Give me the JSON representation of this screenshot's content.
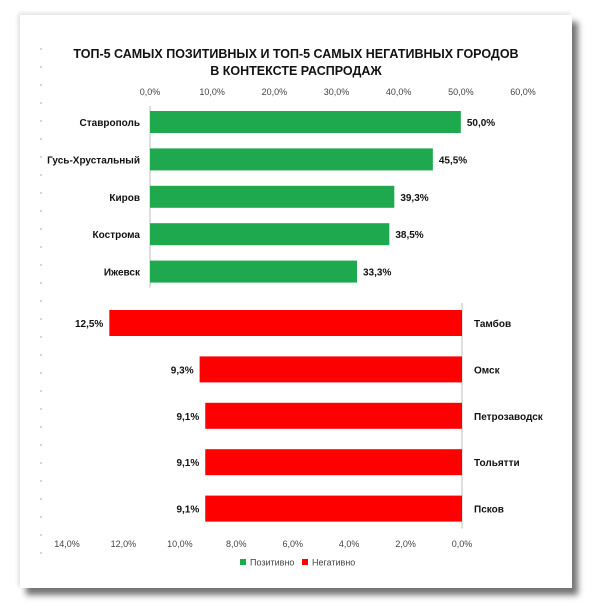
{
  "title": {
    "line1": "ТОП-5 САМЫХ ПОЗИТИВНЫХ И ТОП-5 САМЫХ НЕГАТИВНЫХ ГОРОДОВ",
    "line2": "В КОНТЕКСТЕ РАСПРОДАЖ"
  },
  "colors": {
    "positive": "#1fa94f",
    "negative": "#ff0000"
  },
  "chart_data": [
    {
      "type": "bar",
      "orientation": "horizontal",
      "series": [
        {
          "name": "Позитивно",
          "values": [
            50.0,
            45.5,
            39.3,
            38.5,
            33.3
          ]
        }
      ],
      "categories": [
        "Ставрополь",
        "Гусь-Хрустальный",
        "Киров",
        "Кострома",
        "Ижевск"
      ],
      "value_labels": [
        "50,0%",
        "45,5%",
        "39,3%",
        "38,5%",
        "33,3%"
      ],
      "xlim": [
        0,
        60
      ],
      "axis_position": "top",
      "ticks": [
        "0,0%",
        "10,0%",
        "20,0%",
        "30,0%",
        "40,0%",
        "50,0%",
        "60,0%"
      ]
    },
    {
      "type": "bar",
      "orientation": "horizontal",
      "reversed_axis": true,
      "series": [
        {
          "name": "Негативно",
          "values": [
            12.5,
            9.3,
            9.1,
            9.1,
            9.1
          ]
        }
      ],
      "categories": [
        "Тамбов",
        "Омск",
        "Петрозаводск",
        "Тольятти",
        "Псков"
      ],
      "value_labels": [
        "12,5%",
        "9,3%",
        "9,1%",
        "9,1%",
        "9,1%"
      ],
      "xlim": [
        0,
        14
      ],
      "axis_position": "bottom",
      "ticks": [
        "14,0%",
        "12,0%",
        "10,0%",
        "8,0%",
        "6,0%",
        "4,0%",
        "2,0%",
        "0,0%"
      ]
    }
  ],
  "legend": {
    "position": "bottom",
    "items": [
      {
        "label": "Позитивно",
        "color": "#1fa94f"
      },
      {
        "label": "Негативно",
        "color": "#ff0000"
      }
    ]
  }
}
